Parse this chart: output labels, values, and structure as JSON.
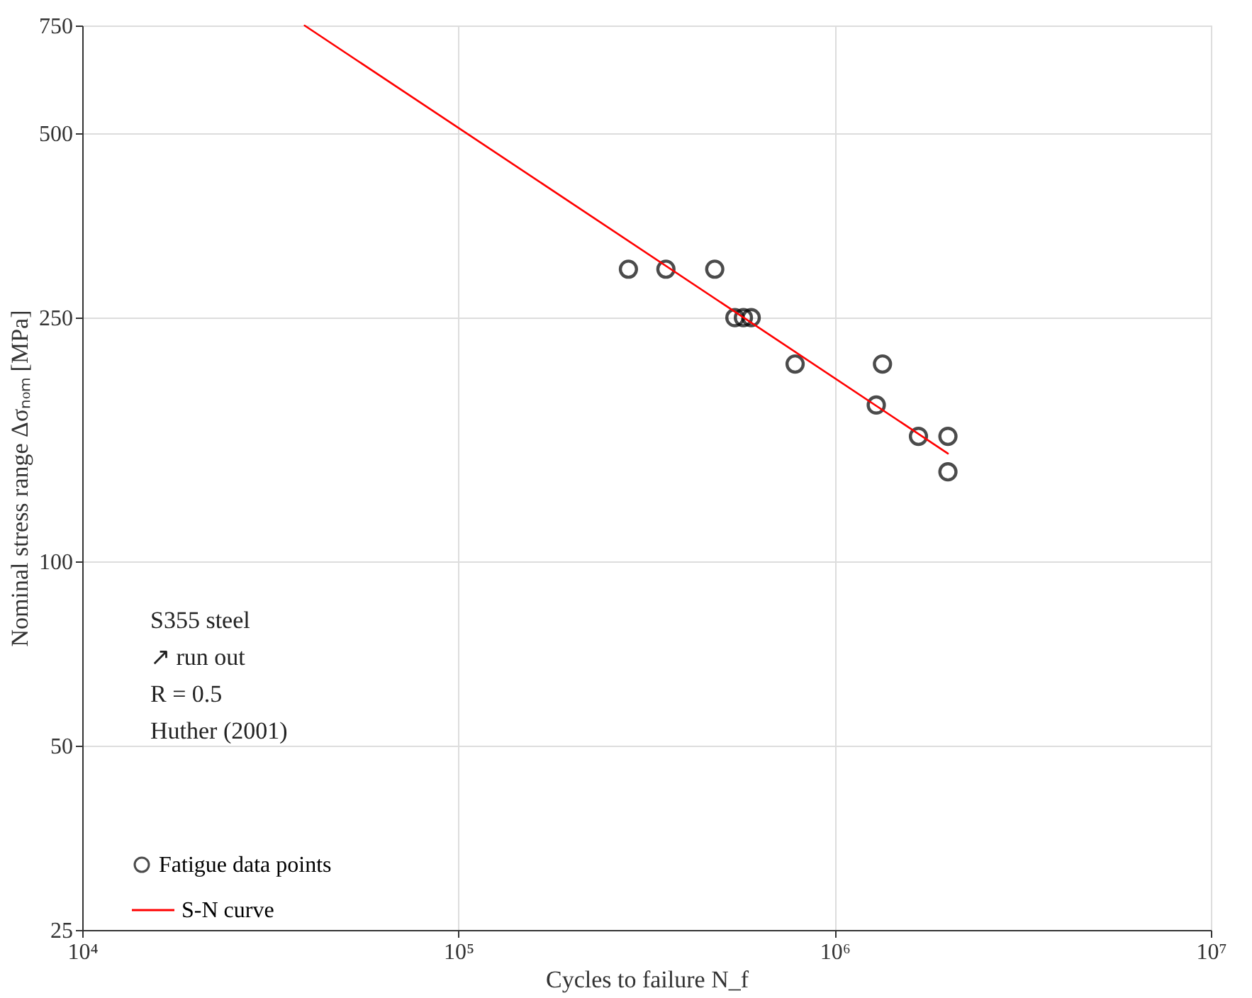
{
  "chart_data": {
    "type": "scatter",
    "xlabel": "Cycles to failure N_f",
    "ylabel": "Nominal stress range Δσₙₒₘ [MPa]",
    "log": "xy",
    "xlim": [
      10000,
      10000000
    ],
    "ylim": [
      25,
      750
    ],
    "xticks": [
      {
        "value": 10000,
        "label": "10⁴"
      },
      {
        "value": 100000,
        "label": "10⁵"
      },
      {
        "value": 1000000,
        "label": "10⁶"
      },
      {
        "value": 10000000,
        "label": "10⁷"
      }
    ],
    "yticks": [
      25,
      50,
      100,
      250,
      500,
      750
    ],
    "grid": true,
    "legend": "bottom left",
    "annotations": [
      "S355 steel",
      "↗ run out",
      "R = 0.5",
      "Huther (2001)"
    ],
    "series": [
      {
        "name": "Fatigue data points",
        "type": "scatter",
        "color": "#000000",
        "marker": "circle",
        "x": [
          283000,
          356000,
          480000,
          543000,
          572000,
          600000,
          785000,
          1290000,
          1340000,
          1670000,
          2000000,
          2000000
        ],
        "values": [
          300,
          300,
          300,
          250,
          250,
          250,
          210,
          180,
          210,
          160,
          160,
          140
        ]
      },
      {
        "name": "S-N curve",
        "type": "line",
        "color": "#ff0000",
        "line_style": "solid",
        "x": [
          39000,
          2000000
        ],
        "values": [
          750,
          150
        ]
      }
    ]
  }
}
